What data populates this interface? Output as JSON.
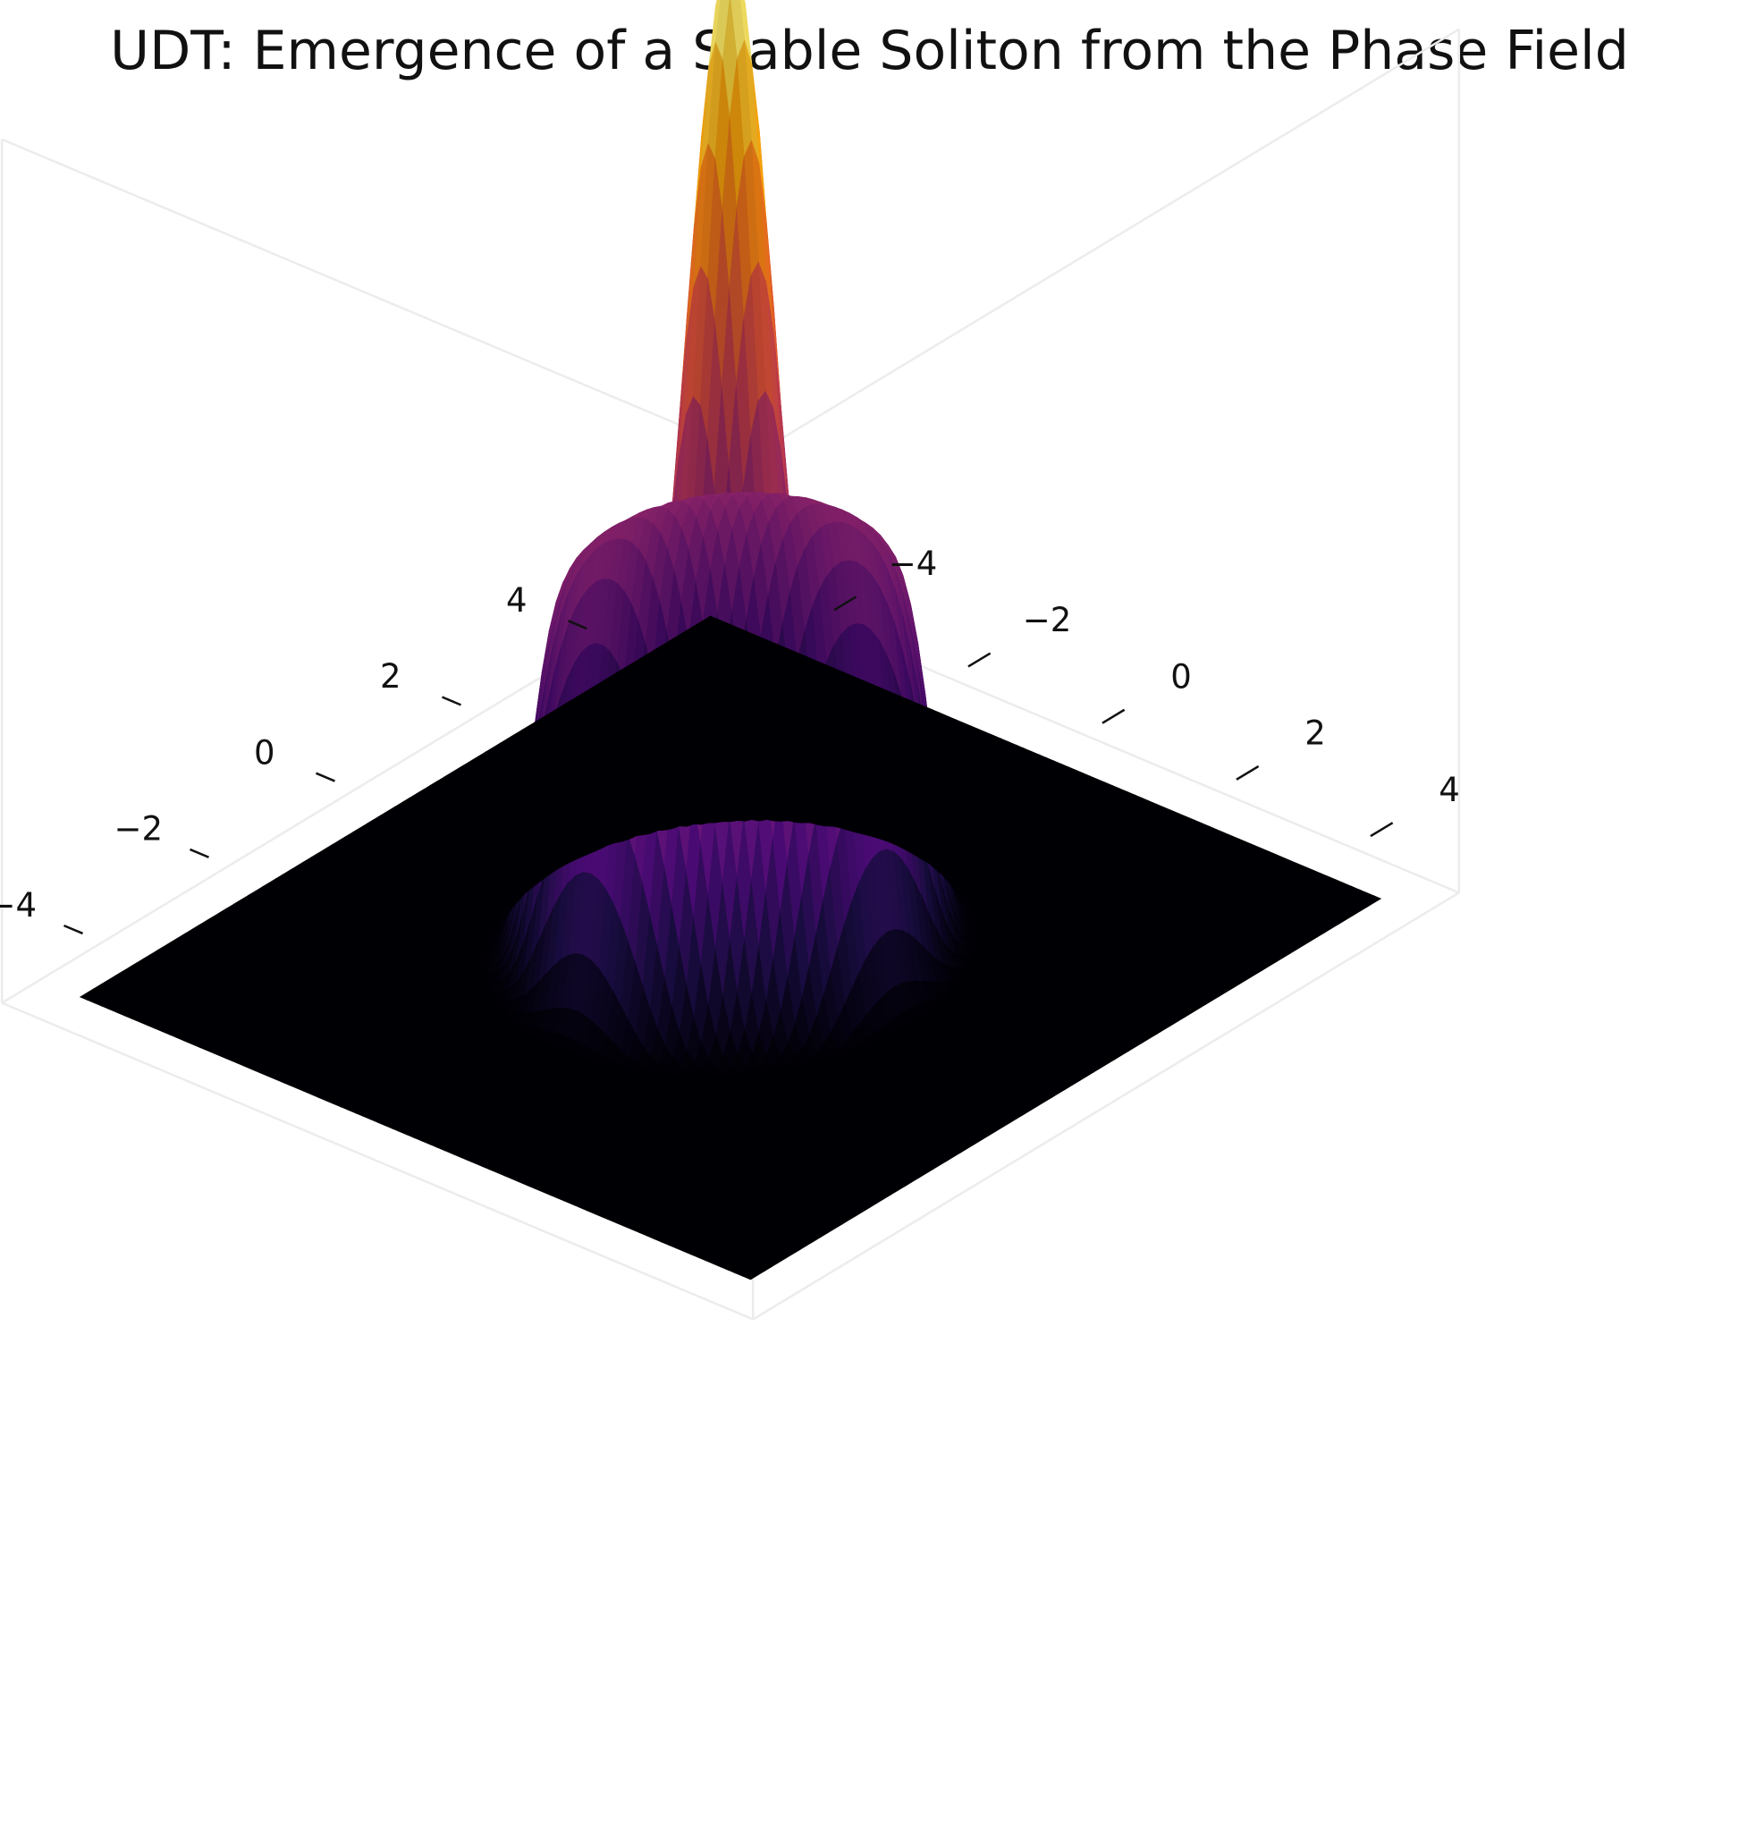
{
  "chart_data": {
    "type": "surface",
    "title": "UDT: Emergence of a Stable Soliton from the Phase Field",
    "xlabel": "",
    "ylabel": "",
    "zlabel": "",
    "colormap": "inferno",
    "grid": false,
    "x_axis": {
      "range": [
        -5,
        5
      ],
      "ticks": [
        -4,
        -2,
        0,
        2,
        4
      ],
      "tick_labels": [
        "−4",
        "−2",
        "0",
        "2",
        "4"
      ]
    },
    "y_axis": {
      "range": [
        -5,
        5
      ],
      "ticks": [
        -4,
        -2,
        0,
        2,
        4
      ],
      "tick_labels": [
        "−4",
        "−2",
        "0",
        "2",
        "4"
      ]
    },
    "z_axis": {
      "ticks_visible": false
    },
    "surface": {
      "shape": "radial soliton: central narrow peak surrounded by a raised ring, flat zero plane elsewhere",
      "center": [
        0,
        0
      ],
      "peak_value": 1.0,
      "peak_width": 0.5,
      "ring_height": 0.38,
      "ring_radius": 1.5,
      "ring_width": 0.75,
      "base_value": 0
    }
  }
}
